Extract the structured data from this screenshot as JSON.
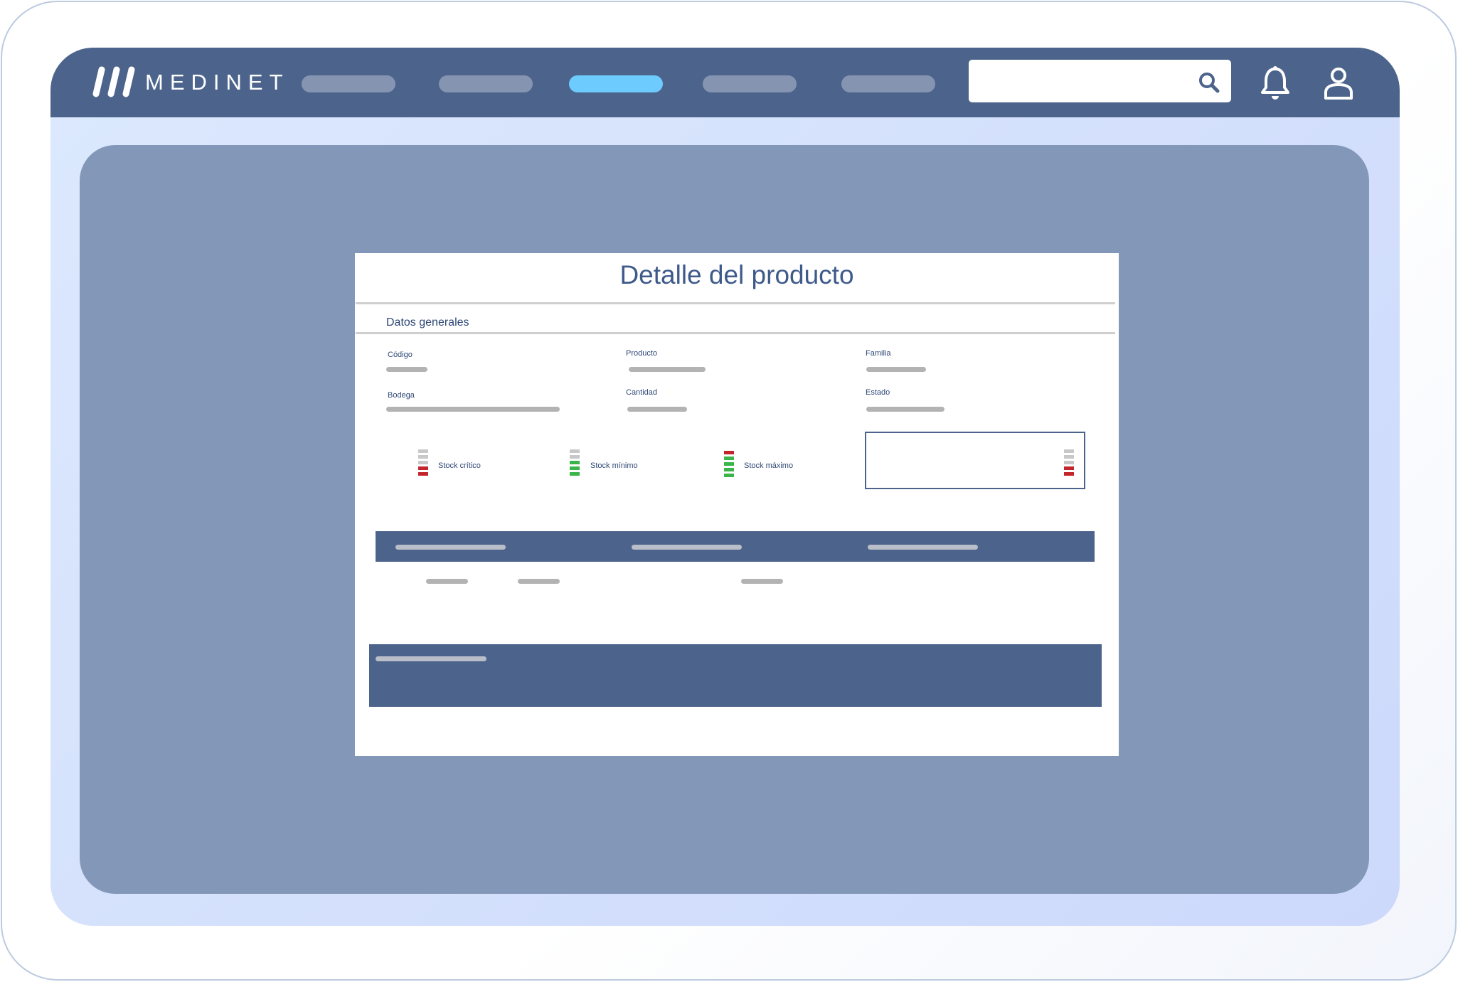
{
  "header": {
    "brand": "MEDINET",
    "nav_count": 5,
    "active_nav_index": 2,
    "search": {
      "placeholder": "",
      "value": ""
    },
    "icons": [
      "search-icon",
      "bell-icon",
      "user-icon"
    ]
  },
  "card": {
    "title": "Detalle del producto",
    "section": "Datos generales",
    "fields": [
      {
        "label": "Código"
      },
      {
        "label": "Producto"
      },
      {
        "label": "Familia"
      },
      {
        "label": "Bodega"
      },
      {
        "label": "Cantidad"
      },
      {
        "label": "Estado"
      }
    ],
    "legend": [
      {
        "label": "Stock crítico"
      },
      {
        "label": "Stock mínimo"
      },
      {
        "label": "Stock máximo"
      }
    ]
  },
  "colors": {
    "header": "#4c648c",
    "active_nav": "#6ecbfd",
    "panel": "#8398b9",
    "critical": "#c4242b",
    "ok": "#3bb54a",
    "title": "#3e5a8a"
  }
}
